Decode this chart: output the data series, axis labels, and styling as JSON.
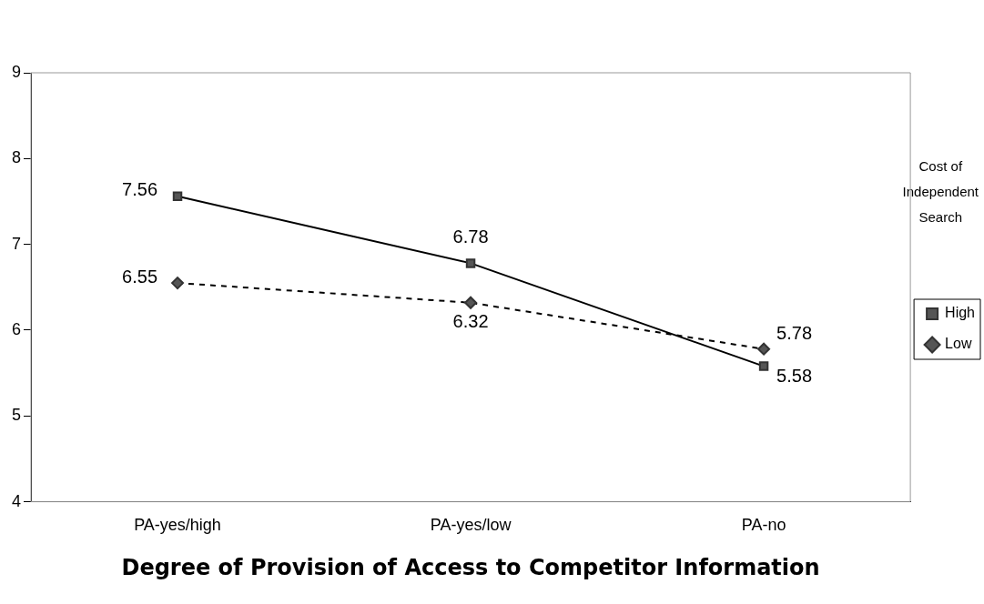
{
  "chart_data": {
    "type": "line",
    "xlabel": "Degree of Provision of Access to Competitor Information",
    "legend_title": "Cost of Independent Search",
    "categories": [
      "PA-yes/high",
      "PA-yes/low",
      "PA-no"
    ],
    "series": [
      {
        "name": "High",
        "color": "#000000",
        "values": [
          7.56,
          6.78,
          5.58
        ],
        "marker": "square",
        "line_style": "solid"
      },
      {
        "name": "Low",
        "color": "#000000",
        "values": [
          6.55,
          6.32,
          5.78
        ],
        "marker": "diamond",
        "line_style": "dashed"
      }
    ],
    "ylim": [
      4,
      9
    ],
    "yticks": [
      4,
      5,
      6,
      7,
      8,
      9
    ],
    "grid": false,
    "legend": "right",
    "data_labels": true
  }
}
